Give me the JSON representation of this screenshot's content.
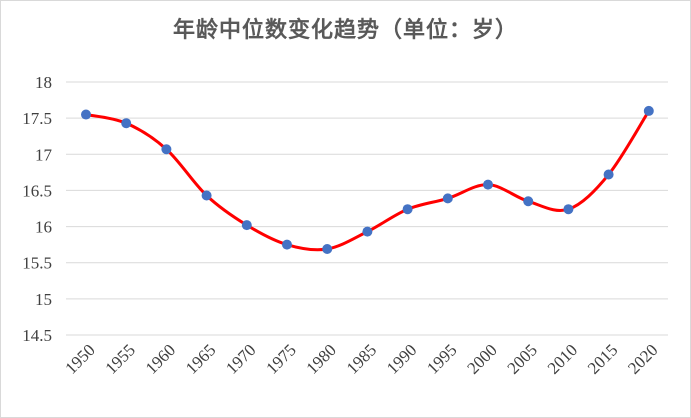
{
  "chart_data": {
    "type": "line",
    "title": "年龄中位数变化趋势（单位：岁）",
    "xlabel": "",
    "ylabel": "",
    "x": [
      "1950",
      "1955",
      "1960",
      "1965",
      "1970",
      "1975",
      "1980",
      "1985",
      "1990",
      "1995",
      "2000",
      "2005",
      "2010",
      "2015",
      "2020"
    ],
    "series": [
      {
        "values": [
          17.55,
          17.43,
          17.07,
          16.43,
          16.02,
          15.75,
          15.69,
          15.93,
          16.24,
          16.39,
          16.58,
          16.35,
          16.24,
          16.72,
          17.6
        ]
      }
    ],
    "ylim": [
      14.5,
      18
    ],
    "yticks": [
      "14.5",
      "15",
      "15.5",
      "16",
      "16.5",
      "17",
      "17.5",
      "18"
    ],
    "grid": true,
    "legend": "none",
    "line_style": "smooth",
    "colors": {
      "line": "#ff0000",
      "marker": "#4472c4",
      "grid": "#d9d9d9"
    }
  }
}
